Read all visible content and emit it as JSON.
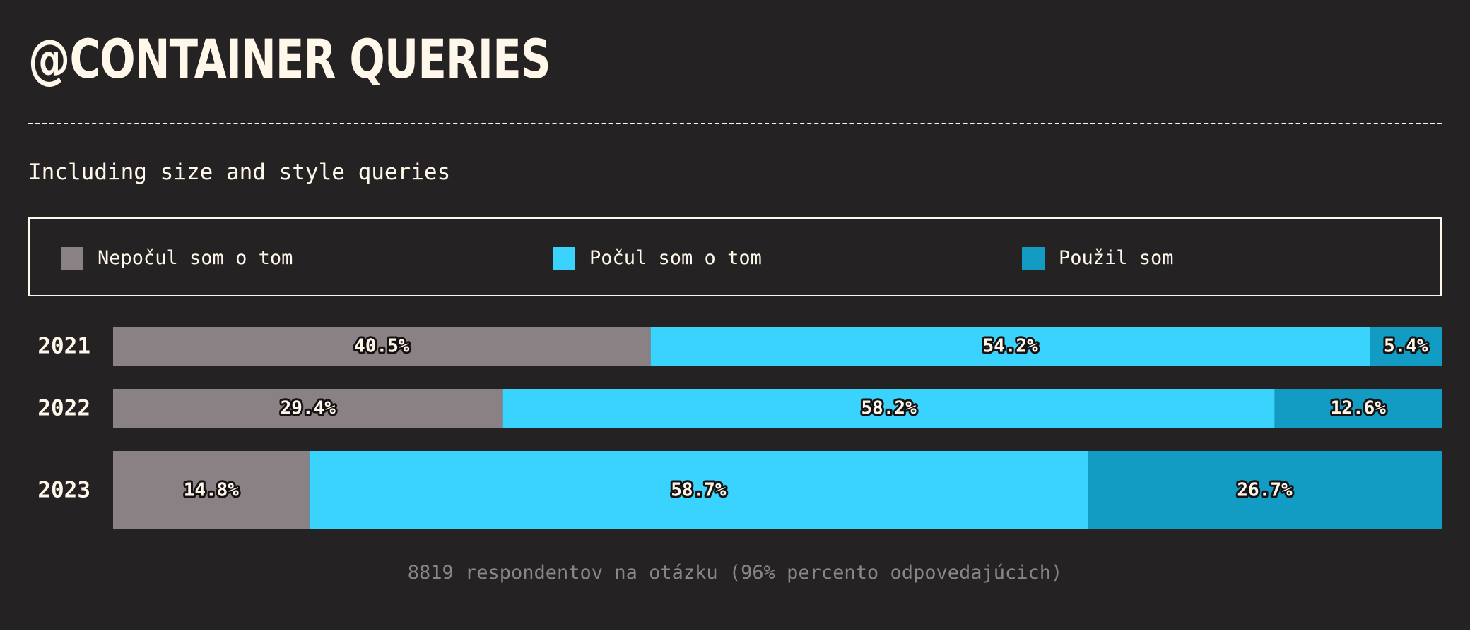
{
  "page": {
    "title": "@CONTAINER QUERIES",
    "subtitle": "Including size and style queries",
    "footer": "8819 respondentov na otázku (96% percento odpovedajúcich)",
    "background": "#252223",
    "text_color": "#fff7ea"
  },
  "legend": {
    "items": [
      {
        "label": "Nepočul som o tom",
        "color": "#8a8185"
      },
      {
        "label": "Počul som o tom",
        "color": "#39d3fd"
      },
      {
        "label": "Použil som",
        "color": "#129bc3"
      }
    ]
  },
  "chart_data": {
    "type": "bar",
    "orientation": "horizontal",
    "stacked": true,
    "normalized": true,
    "categories": [
      "2021",
      "2022",
      "2023"
    ],
    "series": [
      {
        "name": "Nepočul som o tom",
        "color": "#8a8185",
        "values": [
          40.5,
          29.4,
          14.8
        ],
        "labels": [
          "40.5%",
          "29.4%",
          "14.8%"
        ]
      },
      {
        "name": "Počul som o tom",
        "color": "#39d3fd",
        "values": [
          54.2,
          58.2,
          58.7
        ],
        "labels": [
          "54.2%",
          "58.2%",
          "58.7%"
        ]
      },
      {
        "name": "Použil som",
        "color": "#129bc3",
        "values": [
          5.4,
          12.6,
          26.7
        ],
        "labels": [
          "5.4%",
          "12.6%",
          "26.7%"
        ]
      }
    ],
    "xlim": [
      0,
      100
    ],
    "grid": false,
    "legend_position": "top"
  }
}
